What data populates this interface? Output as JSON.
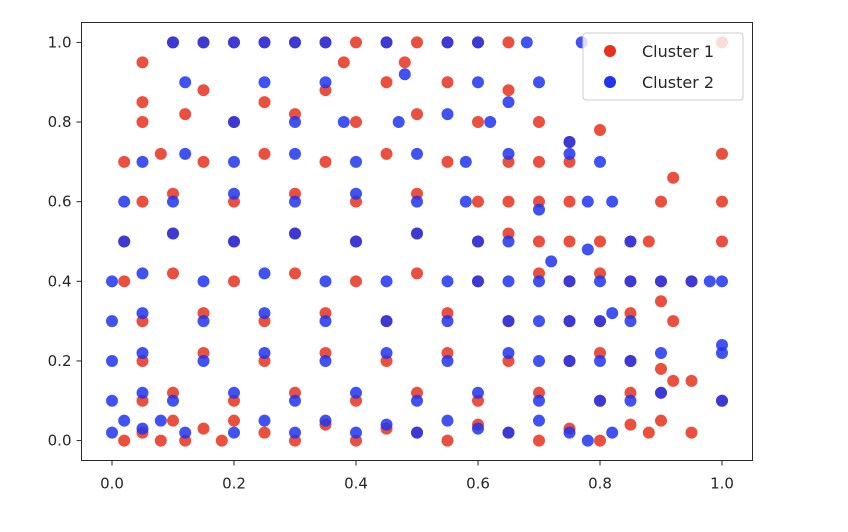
{
  "chart_data": {
    "type": "scatter",
    "title": "",
    "xlabel": "",
    "ylabel": "",
    "xlim": [
      -0.05,
      1.05
    ],
    "ylim": [
      -0.05,
      1.05
    ],
    "x_ticks": [
      "0.0",
      "0.2",
      "0.4",
      "0.6",
      "0.8",
      "1.0"
    ],
    "y_ticks": [
      "0.0",
      "0.2",
      "0.4",
      "0.6",
      "0.8",
      "1.0"
    ],
    "grid": false,
    "legend_position": "top-right",
    "series": [
      {
        "name": "Cluster 1",
        "color": "#e8301c",
        "points": [
          [
            0.02,
            0.0
          ],
          [
            0.05,
            0.02
          ],
          [
            0.08,
            0.0
          ],
          [
            0.1,
            0.05
          ],
          [
            0.12,
            0.0
          ],
          [
            0.15,
            0.03
          ],
          [
            0.18,
            0.0
          ],
          [
            0.2,
            0.05
          ],
          [
            0.25,
            0.02
          ],
          [
            0.3,
            0.0
          ],
          [
            0.35,
            0.04
          ],
          [
            0.4,
            0.0
          ],
          [
            0.45,
            0.03
          ],
          [
            0.5,
            0.02
          ],
          [
            0.55,
            0.0
          ],
          [
            0.6,
            0.04
          ],
          [
            0.65,
            0.02
          ],
          [
            0.7,
            0.0
          ],
          [
            0.75,
            0.03
          ],
          [
            0.8,
            0.0
          ],
          [
            0.85,
            0.04
          ],
          [
            0.88,
            0.02
          ],
          [
            0.9,
            0.05
          ],
          [
            0.95,
            0.02
          ],
          [
            0.05,
            0.1
          ],
          [
            0.1,
            0.12
          ],
          [
            0.2,
            0.1
          ],
          [
            0.3,
            0.12
          ],
          [
            0.4,
            0.1
          ],
          [
            0.5,
            0.12
          ],
          [
            0.6,
            0.1
          ],
          [
            0.7,
            0.12
          ],
          [
            0.8,
            0.1
          ],
          [
            0.85,
            0.12
          ],
          [
            0.9,
            0.12
          ],
          [
            1.0,
            0.1
          ],
          [
            0.95,
            0.15
          ],
          [
            0.05,
            0.2
          ],
          [
            0.15,
            0.22
          ],
          [
            0.25,
            0.2
          ],
          [
            0.35,
            0.22
          ],
          [
            0.45,
            0.2
          ],
          [
            0.55,
            0.22
          ],
          [
            0.65,
            0.2
          ],
          [
            0.75,
            0.2
          ],
          [
            0.8,
            0.22
          ],
          [
            0.85,
            0.2
          ],
          [
            0.9,
            0.18
          ],
          [
            0.92,
            0.15
          ],
          [
            0.05,
            0.3
          ],
          [
            0.15,
            0.32
          ],
          [
            0.25,
            0.3
          ],
          [
            0.35,
            0.32
          ],
          [
            0.45,
            0.3
          ],
          [
            0.55,
            0.32
          ],
          [
            0.65,
            0.3
          ],
          [
            0.75,
            0.3
          ],
          [
            0.8,
            0.3
          ],
          [
            0.85,
            0.32
          ],
          [
            0.9,
            0.35
          ],
          [
            0.92,
            0.3
          ],
          [
            0.02,
            0.4
          ],
          [
            0.1,
            0.42
          ],
          [
            0.2,
            0.4
          ],
          [
            0.3,
            0.42
          ],
          [
            0.4,
            0.4
          ],
          [
            0.5,
            0.42
          ],
          [
            0.6,
            0.4
          ],
          [
            0.7,
            0.42
          ],
          [
            0.75,
            0.4
          ],
          [
            0.8,
            0.42
          ],
          [
            0.85,
            0.4
          ],
          [
            0.9,
            0.4
          ],
          [
            0.95,
            0.4
          ],
          [
            0.02,
            0.5
          ],
          [
            0.1,
            0.52
          ],
          [
            0.2,
            0.5
          ],
          [
            0.3,
            0.52
          ],
          [
            0.4,
            0.5
          ],
          [
            0.5,
            0.52
          ],
          [
            0.6,
            0.5
          ],
          [
            0.65,
            0.52
          ],
          [
            0.7,
            0.5
          ],
          [
            0.75,
            0.5
          ],
          [
            0.8,
            0.5
          ],
          [
            0.85,
            0.5
          ],
          [
            0.88,
            0.5
          ],
          [
            1.0,
            0.5
          ],
          [
            0.05,
            0.6
          ],
          [
            0.1,
            0.62
          ],
          [
            0.2,
            0.6
          ],
          [
            0.3,
            0.62
          ],
          [
            0.4,
            0.6
          ],
          [
            0.5,
            0.62
          ],
          [
            0.6,
            0.6
          ],
          [
            0.65,
            0.6
          ],
          [
            0.7,
            0.6
          ],
          [
            0.75,
            0.6
          ],
          [
            0.9,
            0.6
          ],
          [
            1.0,
            0.6
          ],
          [
            0.02,
            0.7
          ],
          [
            0.08,
            0.72
          ],
          [
            0.15,
            0.7
          ],
          [
            0.25,
            0.72
          ],
          [
            0.35,
            0.7
          ],
          [
            0.45,
            0.72
          ],
          [
            0.55,
            0.7
          ],
          [
            0.65,
            0.7
          ],
          [
            0.7,
            0.7
          ],
          [
            0.75,
            0.7
          ],
          [
            0.92,
            0.66
          ],
          [
            1.0,
            0.72
          ],
          [
            0.05,
            0.8
          ],
          [
            0.12,
            0.82
          ],
          [
            0.2,
            0.8
          ],
          [
            0.3,
            0.82
          ],
          [
            0.4,
            0.8
          ],
          [
            0.5,
            0.82
          ],
          [
            0.6,
            0.8
          ],
          [
            0.7,
            0.8
          ],
          [
            0.75,
            0.75
          ],
          [
            0.8,
            0.78
          ],
          [
            0.05,
            0.85
          ],
          [
            0.15,
            0.88
          ],
          [
            0.25,
            0.85
          ],
          [
            0.35,
            0.88
          ],
          [
            0.45,
            0.9
          ],
          [
            0.55,
            0.9
          ],
          [
            0.65,
            0.88
          ],
          [
            0.05,
            0.95
          ],
          [
            0.1,
            1.0
          ],
          [
            0.15,
            1.0
          ],
          [
            0.2,
            1.0
          ],
          [
            0.25,
            1.0
          ],
          [
            0.3,
            1.0
          ],
          [
            0.35,
            1.0
          ],
          [
            0.4,
            1.0
          ],
          [
            0.45,
            1.0
          ],
          [
            0.5,
            1.0
          ],
          [
            0.55,
            1.0
          ],
          [
            0.6,
            1.0
          ],
          [
            0.65,
            1.0
          ],
          [
            1.0,
            1.0
          ],
          [
            0.38,
            0.95
          ],
          [
            0.48,
            0.95
          ]
        ]
      },
      {
        "name": "Cluster 2",
        "color": "#1f35f0",
        "points": [
          [
            0.0,
            0.02
          ],
          [
            0.02,
            0.05
          ],
          [
            0.05,
            0.03
          ],
          [
            0.08,
            0.05
          ],
          [
            0.12,
            0.02
          ],
          [
            0.2,
            0.02
          ],
          [
            0.25,
            0.05
          ],
          [
            0.3,
            0.02
          ],
          [
            0.35,
            0.05
          ],
          [
            0.4,
            0.02
          ],
          [
            0.45,
            0.04
          ],
          [
            0.5,
            0.02
          ],
          [
            0.55,
            0.05
          ],
          [
            0.6,
            0.03
          ],
          [
            0.65,
            0.02
          ],
          [
            0.7,
            0.05
          ],
          [
            0.75,
            0.02
          ],
          [
            0.78,
            0.0
          ],
          [
            0.82,
            0.02
          ],
          [
            0.0,
            0.1
          ],
          [
            0.05,
            0.12
          ],
          [
            0.1,
            0.1
          ],
          [
            0.2,
            0.12
          ],
          [
            0.3,
            0.1
          ],
          [
            0.4,
            0.12
          ],
          [
            0.5,
            0.1
          ],
          [
            0.6,
            0.12
          ],
          [
            0.7,
            0.1
          ],
          [
            0.8,
            0.1
          ],
          [
            0.85,
            0.1
          ],
          [
            0.9,
            0.12
          ],
          [
            1.0,
            0.1
          ],
          [
            0.0,
            0.2
          ],
          [
            0.05,
            0.22
          ],
          [
            0.15,
            0.2
          ],
          [
            0.25,
            0.22
          ],
          [
            0.35,
            0.2
          ],
          [
            0.45,
            0.22
          ],
          [
            0.55,
            0.2
          ],
          [
            0.65,
            0.22
          ],
          [
            0.7,
            0.2
          ],
          [
            0.75,
            0.2
          ],
          [
            0.8,
            0.2
          ],
          [
            0.85,
            0.2
          ],
          [
            0.9,
            0.22
          ],
          [
            1.0,
            0.22
          ],
          [
            1.0,
            0.24
          ],
          [
            0.0,
            0.3
          ],
          [
            0.05,
            0.32
          ],
          [
            0.15,
            0.3
          ],
          [
            0.25,
            0.32
          ],
          [
            0.35,
            0.3
          ],
          [
            0.45,
            0.3
          ],
          [
            0.55,
            0.3
          ],
          [
            0.65,
            0.3
          ],
          [
            0.7,
            0.3
          ],
          [
            0.75,
            0.3
          ],
          [
            0.8,
            0.3
          ],
          [
            0.82,
            0.32
          ],
          [
            0.85,
            0.3
          ],
          [
            0.0,
            0.4
          ],
          [
            0.05,
            0.42
          ],
          [
            0.15,
            0.4
          ],
          [
            0.25,
            0.42
          ],
          [
            0.35,
            0.4
          ],
          [
            0.45,
            0.4
          ],
          [
            0.55,
            0.4
          ],
          [
            0.6,
            0.4
          ],
          [
            0.65,
            0.4
          ],
          [
            0.7,
            0.4
          ],
          [
            0.75,
            0.4
          ],
          [
            0.8,
            0.4
          ],
          [
            0.85,
            0.4
          ],
          [
            0.9,
            0.4
          ],
          [
            0.95,
            0.4
          ],
          [
            0.98,
            0.4
          ],
          [
            1.0,
            0.4
          ],
          [
            0.02,
            0.5
          ],
          [
            0.1,
            0.52
          ],
          [
            0.2,
            0.5
          ],
          [
            0.3,
            0.52
          ],
          [
            0.4,
            0.5
          ],
          [
            0.5,
            0.52
          ],
          [
            0.6,
            0.5
          ],
          [
            0.65,
            0.5
          ],
          [
            0.72,
            0.45
          ],
          [
            0.78,
            0.48
          ],
          [
            0.85,
            0.5
          ],
          [
            0.02,
            0.6
          ],
          [
            0.1,
            0.6
          ],
          [
            0.2,
            0.62
          ],
          [
            0.3,
            0.6
          ],
          [
            0.4,
            0.62
          ],
          [
            0.5,
            0.6
          ],
          [
            0.58,
            0.6
          ],
          [
            0.7,
            0.58
          ],
          [
            0.78,
            0.6
          ],
          [
            0.82,
            0.6
          ],
          [
            0.05,
            0.7
          ],
          [
            0.12,
            0.72
          ],
          [
            0.2,
            0.7
          ],
          [
            0.3,
            0.72
          ],
          [
            0.4,
            0.7
          ],
          [
            0.5,
            0.72
          ],
          [
            0.58,
            0.7
          ],
          [
            0.65,
            0.72
          ],
          [
            0.75,
            0.75
          ],
          [
            0.8,
            0.7
          ],
          [
            0.2,
            0.8
          ],
          [
            0.3,
            0.8
          ],
          [
            0.38,
            0.8
          ],
          [
            0.47,
            0.8
          ],
          [
            0.55,
            0.82
          ],
          [
            0.62,
            0.8
          ],
          [
            0.65,
            0.85
          ],
          [
            0.75,
            0.72
          ],
          [
            0.12,
            0.9
          ],
          [
            0.25,
            0.9
          ],
          [
            0.35,
            0.9
          ],
          [
            0.48,
            0.92
          ],
          [
            0.6,
            0.9
          ],
          [
            0.7,
            0.9
          ],
          [
            0.1,
            1.0
          ],
          [
            0.15,
            1.0
          ],
          [
            0.2,
            1.0
          ],
          [
            0.25,
            1.0
          ],
          [
            0.3,
            1.0
          ],
          [
            0.35,
            1.0
          ],
          [
            0.45,
            1.0
          ],
          [
            0.55,
            1.0
          ],
          [
            0.6,
            1.0
          ],
          [
            0.68,
            1.0
          ],
          [
            0.77,
            1.0
          ]
        ]
      }
    ],
    "legend": [
      {
        "label": "Cluster 1",
        "color": "#e8301c"
      },
      {
        "label": "Cluster 2",
        "color": "#1f35f0"
      }
    ]
  }
}
